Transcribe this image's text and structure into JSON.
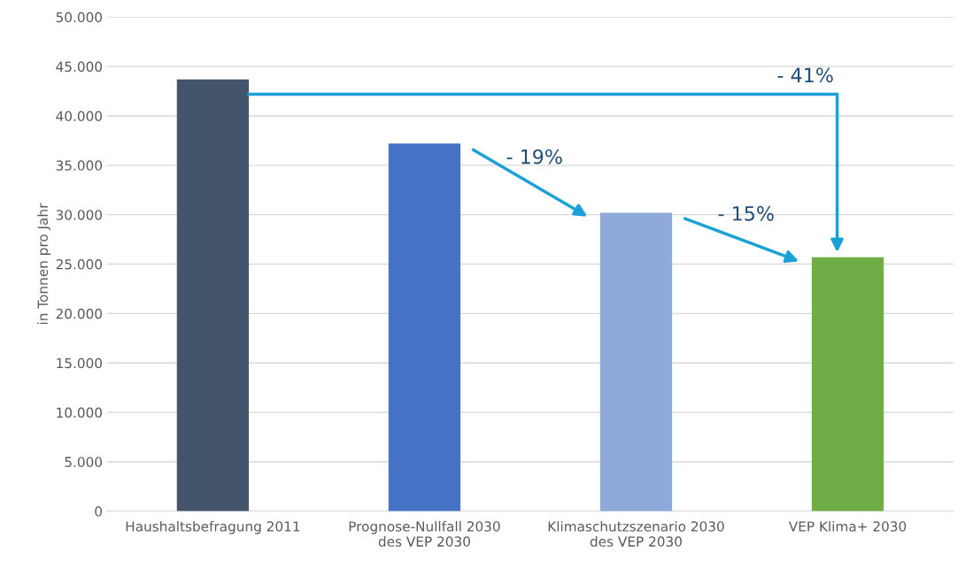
{
  "chart_data": {
    "type": "bar",
    "ylabel": "in Tonnen pro Jahr",
    "categories": [
      "Haushaltsbefragung 2011",
      "Prognose-Nullfall 2030\ndes VEP 2030",
      "Klimaschutzszenario 2030\ndes VEP 2030",
      "VEP Klima+ 2030"
    ],
    "values": [
      43700,
      37200,
      30200,
      25700
    ],
    "colors": [
      "#44546a",
      "#4472c4",
      "#8eaadb",
      "#70ad47"
    ],
    "ylim": [
      0,
      50000
    ],
    "yticks": [
      {
        "value": 0,
        "label": "0"
      },
      {
        "value": 5000,
        "label": "5.000"
      },
      {
        "value": 10000,
        "label": "10.000"
      },
      {
        "value": 15000,
        "label": "15.000"
      },
      {
        "value": 20000,
        "label": "20.000"
      },
      {
        "value": 25000,
        "label": "25.000"
      },
      {
        "value": 30000,
        "label": "30.000"
      },
      {
        "value": 35000,
        "label": "35.000"
      },
      {
        "value": 40000,
        "label": "40.000"
      },
      {
        "value": 45000,
        "label": "45.000"
      },
      {
        "value": 50000,
        "label": "50.000"
      }
    ],
    "grid": "y",
    "annotations": [
      "- 19%",
      "- 15%",
      "- 41%"
    ]
  }
}
